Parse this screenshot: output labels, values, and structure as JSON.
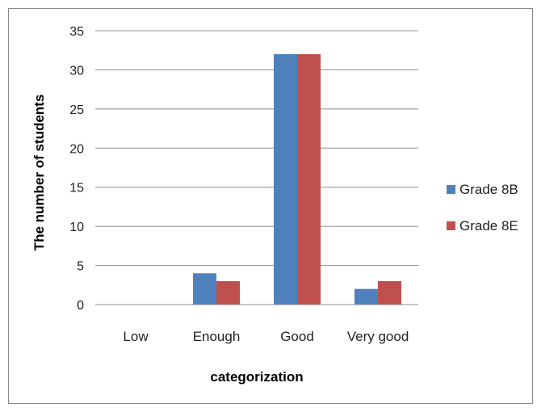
{
  "chart_data": {
    "type": "bar",
    "categories": [
      "Low",
      "Enough",
      "Good",
      "Very good"
    ],
    "series": [
      {
        "name": "Grade 8B",
        "values": [
          0,
          4,
          32,
          2
        ],
        "color": "#4F81BD"
      },
      {
        "name": "Grade 8E",
        "values": [
          0,
          3,
          32,
          3
        ],
        "color": "#C0504D"
      }
    ],
    "xlabel": "categorization",
    "ylabel": "The number of students",
    "ylim": [
      0,
      35
    ],
    "yticks": [
      0,
      5,
      10,
      15,
      20,
      25,
      30,
      35
    ],
    "grid": true,
    "legend": "right"
  }
}
